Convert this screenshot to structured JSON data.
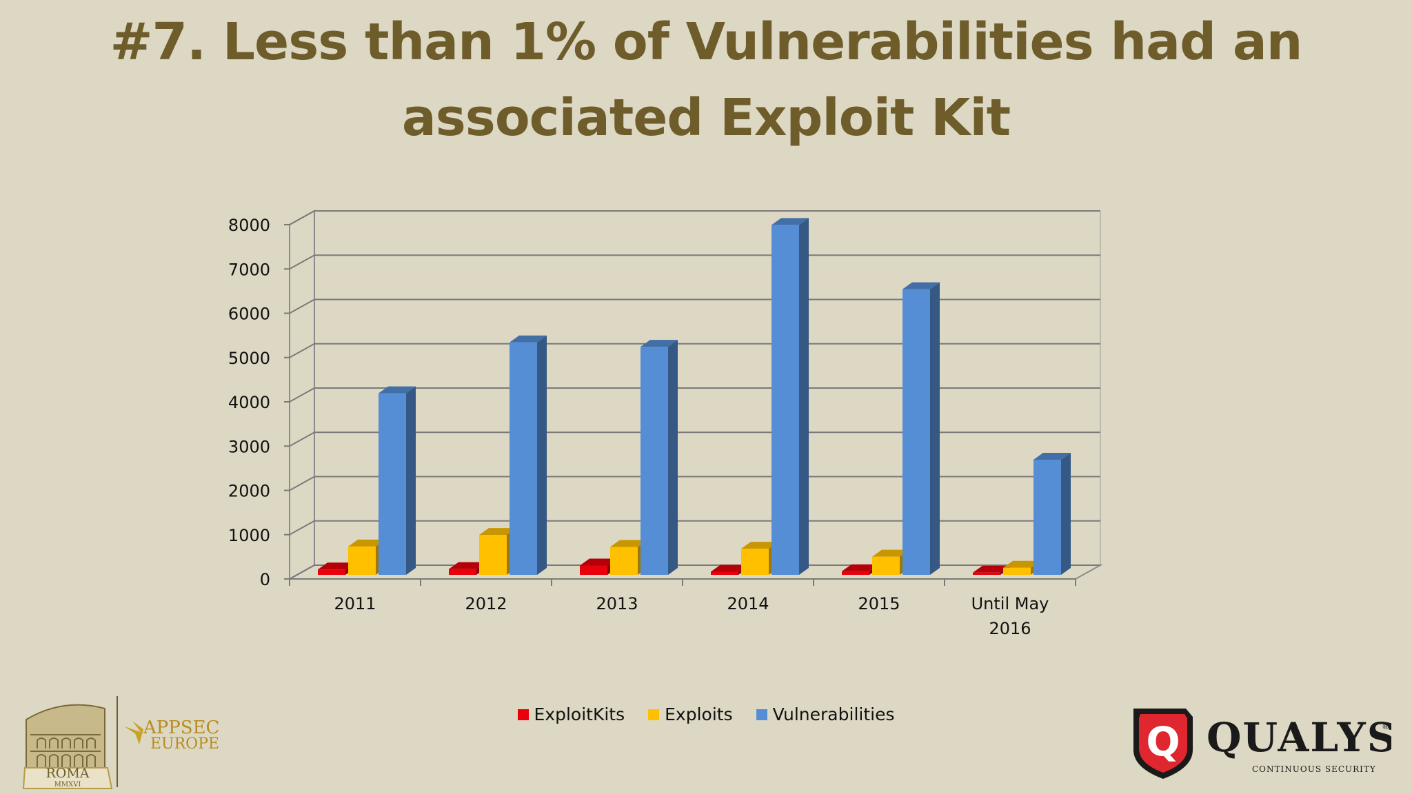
{
  "slide": {
    "title_line1": "#7. Less than 1% of Vulnerabilities had an",
    "title_line2": "associated Exploit Kit"
  },
  "chart_data": {
    "type": "bar",
    "style": "3d-clustered-column",
    "categories": [
      [
        "2011"
      ],
      [
        "2012"
      ],
      [
        "2013"
      ],
      [
        "2014"
      ],
      [
        "2015"
      ],
      [
        "Until May",
        "2016"
      ]
    ],
    "series": [
      {
        "name": "ExploitKits",
        "color": "#e8000b",
        "values": [
          120,
          130,
          210,
          70,
          80,
          50
        ]
      },
      {
        "name": "Exploits",
        "color": "#ffc000",
        "values": [
          640,
          900,
          630,
          590,
          410,
          160
        ]
      },
      {
        "name": "Vulnerabilities",
        "color": "#558ed5",
        "values": [
          4100,
          5250,
          5150,
          7900,
          6450,
          2600
        ]
      }
    ],
    "ylim": [
      0,
      8000
    ],
    "yticks": [
      "0",
      "1000",
      "2000",
      "3000",
      "4000",
      "5000",
      "6000",
      "7000",
      "8000"
    ],
    "grid": true,
    "legend_position": "bottom"
  },
  "logos": {
    "left_text_1": "ROMA",
    "left_text_2": "MMXVI",
    "left_brand_1": "APPSEC",
    "left_brand_2": "EUROPE",
    "right_brand": "QUALYS",
    "right_mark": "®",
    "right_tagline": "CONTINUOUS SECURITY",
    "right_badge_letter": "Q"
  }
}
